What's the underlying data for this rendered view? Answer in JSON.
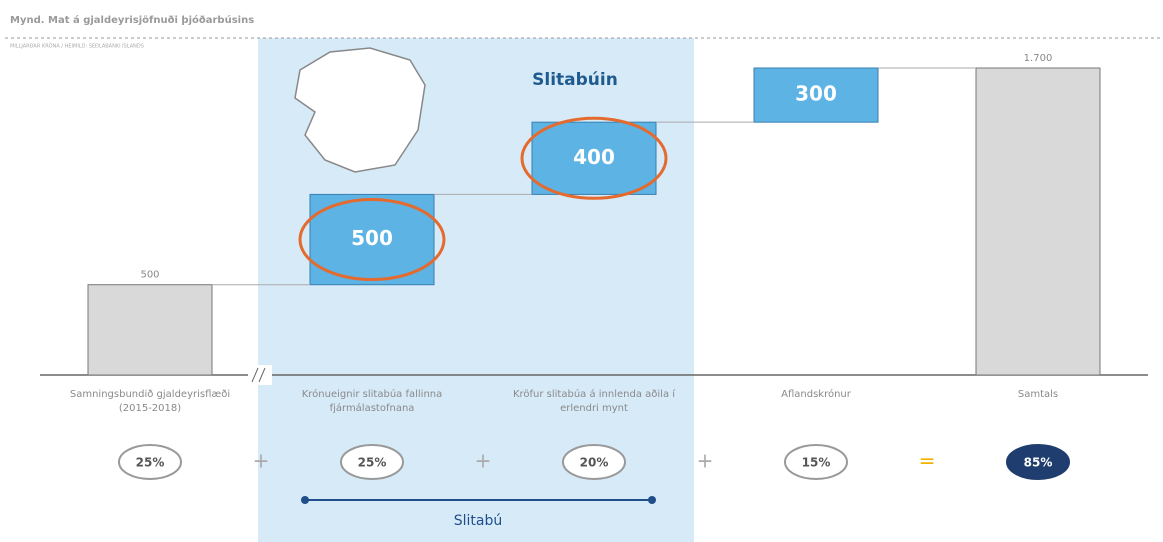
{
  "chart_data": {
    "type": "waterfall",
    "title": "Mynd. Mat á gjaldeyrisjöfnuði þjóðarbúsins",
    "subtitle": "MILLJARÐAR KRÓNA / HEIMILD: SEÐLABANKI ÍSLANDS",
    "group_title": "Slitabúin",
    "group_label": "Slitabú",
    "categories": [
      "Samningsbundið gjaldeyrisflæði (2015-2018)",
      "Krónueignir slitabúa fallinna fjármálastofnana",
      "Kröfur slitabúa á innlenda aðila í erlendri mynt",
      "Aflandskrónur",
      "Samtals"
    ],
    "values": [
      500,
      500,
      400,
      300,
      1700
    ],
    "value_labels": [
      "500",
      "500",
      "400",
      "300",
      "1.700"
    ],
    "colors": [
      "#d9d9d9",
      "#5cb3e4",
      "#5cb3e4",
      "#5cb3e4",
      "#d9d9d9"
    ],
    "shares": [
      25,
      25,
      20,
      15,
      85
    ],
    "share_labels": [
      "25%",
      "25%",
      "20%",
      "15%",
      "85%"
    ],
    "operators": [
      "+",
      "+",
      "+",
      "="
    ],
    "ylim": [
      0,
      1700
    ]
  }
}
